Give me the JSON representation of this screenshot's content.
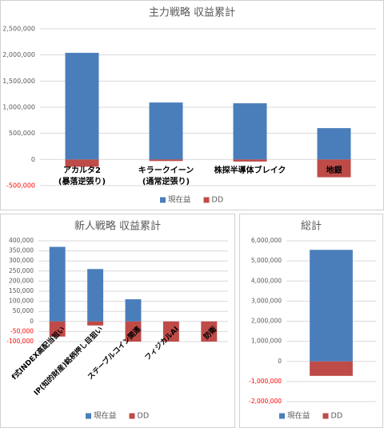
{
  "chart_data": [
    {
      "type": "bar",
      "title": "主力戦略 収益累計",
      "categories": [
        [
          "アカルタ2",
          "(暴落逆張り)"
        ],
        [
          "キラークイーン",
          "(通常逆張り)"
        ],
        [
          "株探半導体ブレイク"
        ],
        [
          "地銀"
        ]
      ],
      "series": [
        {
          "name": "現在益",
          "color": "#4a7ebb",
          "values": [
            2040000,
            1090000,
            1075000,
            600000
          ]
        },
        {
          "name": "DD",
          "color": "#be4b48",
          "values": [
            -140000,
            -30000,
            -40000,
            -340000
          ]
        }
      ],
      "ylim": [
        -500000,
        2500000
      ],
      "yticks": [
        {
          "value": -500000,
          "label": "-500,000"
        },
        0,
        {
          "value": 500000,
          "label": "500,000"
        },
        {
          "value": 1000000,
          "label": "1,000,000"
        },
        {
          "value": 1500000,
          "label": "1,500,000"
        },
        {
          "value": 2000000,
          "label": "2,000,000"
        },
        {
          "value": 2500000,
          "label": "2,500,000"
        }
      ],
      "grid": true,
      "negative_tick_color": "#ff0000",
      "legend": "bottom"
    },
    {
      "type": "bar",
      "title": "新人戦略 収益累計",
      "categories": [
        "f式INDEX高配当狙い",
        "IP(知的財産)銘柄押し目狙い",
        "ステーブルコイン関連",
        "フィジカルAI",
        "防衛"
      ],
      "series": [
        {
          "name": "現在益",
          "color": "#4a7ebb",
          "values": [
            370000,
            260000,
            110000,
            0,
            0
          ]
        },
        {
          "name": "DD",
          "color": "#be4b48",
          "values": [
            -75000,
            -20000,
            -100000,
            -100000,
            -100000
          ]
        }
      ],
      "ylim": [
        -100000,
        400000
      ],
      "yticks": [
        {
          "value": -100000,
          "label": "-100,000"
        },
        {
          "value": -50000,
          "label": "-50,000"
        },
        0,
        {
          "value": 50000,
          "label": "50,000"
        },
        {
          "value": 100000,
          "label": "100,000"
        },
        {
          "value": 150000,
          "label": "150,000"
        },
        {
          "value": 200000,
          "label": "200,000"
        },
        {
          "value": 250000,
          "label": "250,000"
        },
        {
          "value": 300000,
          "label": "300,000"
        },
        {
          "value": 350000,
          "label": "350,000"
        },
        {
          "value": 400000,
          "label": "400,000"
        }
      ],
      "grid": true,
      "negative_tick_color": "#ff0000",
      "legend": "bottom"
    },
    {
      "type": "bar",
      "title": "総計",
      "categories": [
        null
      ],
      "series": [
        {
          "name": "現在益",
          "color": "#4a7ebb",
          "values": [
            5550000
          ]
        },
        {
          "name": "DD",
          "color": "#be4b48",
          "values": [
            -720000
          ]
        }
      ],
      "ylim": [
        -2000000,
        6000000
      ],
      "yticks": [
        {
          "value": -2000000,
          "label": "-2,000,000"
        },
        {
          "value": -1000000,
          "label": "-1,000,000"
        },
        0,
        {
          "value": 1000000,
          "label": "1,000,000"
        },
        {
          "value": 2000000,
          "label": "2,000,000"
        },
        {
          "value": 3000000,
          "label": "3,000,000"
        },
        {
          "value": 4000000,
          "label": "4,000,000"
        },
        {
          "value": 5000000,
          "label": "5,000,000"
        },
        {
          "value": 6000000,
          "label": "6,000,000"
        }
      ],
      "grid": true,
      "negative_tick_color": "#ff0000",
      "legend": "bottom"
    }
  ]
}
